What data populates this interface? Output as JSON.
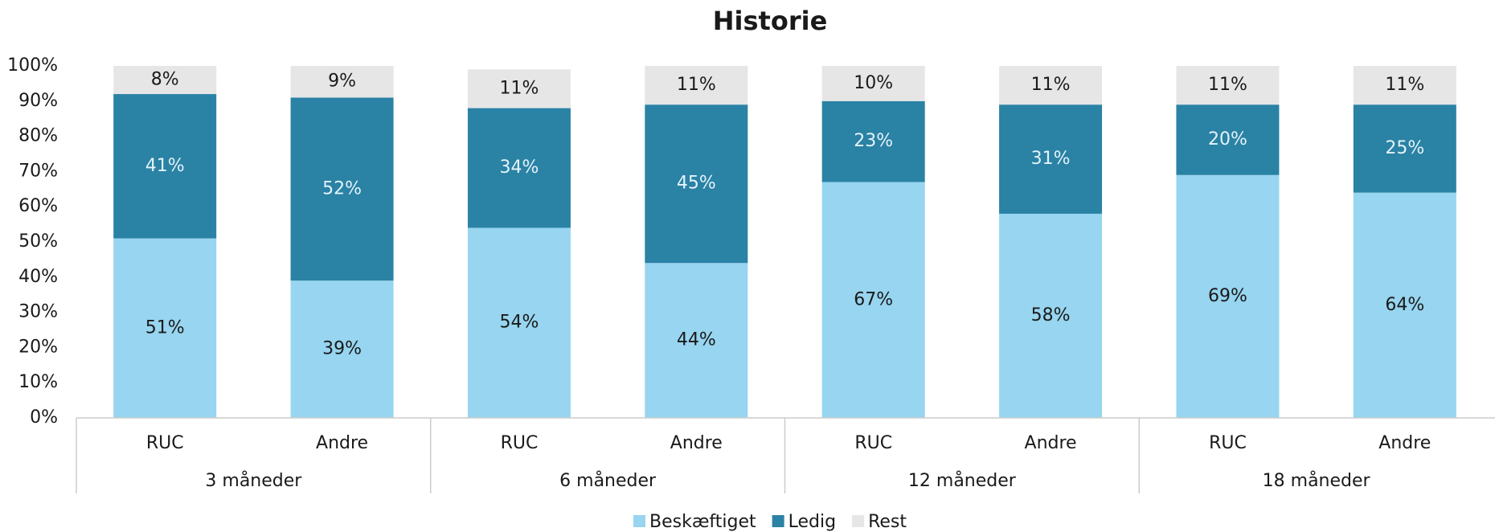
{
  "chart_data": {
    "type": "stacked_bar",
    "title": "Historie",
    "categories": [
      "RUC",
      "Andre",
      "RUC",
      "Andre",
      "RUC",
      "Andre",
      "RUC",
      "Andre"
    ],
    "groups": [
      "3 måneder",
      "6 måneder",
      "12 måneder",
      "18 måneder"
    ],
    "series": [
      {
        "name": "Beskæftiget",
        "color": "#97d5f0",
        "label_color": "#1a1a1a",
        "values": [
          51,
          39,
          54,
          44,
          67,
          58,
          69,
          64
        ],
        "value_labels": [
          "51%",
          "39%",
          "54%",
          "44%",
          "67%",
          "58%",
          "69%",
          "64%"
        ]
      },
      {
        "name": "Ledig",
        "color": "#2a82a5",
        "label_color": "#e4f3f9",
        "values": [
          41,
          52,
          34,
          45,
          23,
          31,
          20,
          25
        ],
        "value_labels": [
          "41%",
          "52%",
          "34%",
          "45%",
          "23%",
          "31%",
          "20%",
          "25%"
        ]
      },
      {
        "name": "Rest",
        "color": "#e6e6e6",
        "label_color": "#1a1a1a",
        "values": [
          8,
          9,
          11,
          11,
          10,
          11,
          11,
          11
        ],
        "value_labels": [
          "8%",
          "9%",
          "11%",
          "11%",
          "10%",
          "11%",
          "11%",
          "11%"
        ]
      }
    ],
    "ylim": [
      0,
      100
    ],
    "yticks": [
      {
        "value": 0,
        "label": "0%"
      },
      {
        "value": 10,
        "label": "10%"
      },
      {
        "value": 20,
        "label": "20%"
      },
      {
        "value": 30,
        "label": "30%"
      },
      {
        "value": 40,
        "label": "40%"
      },
      {
        "value": 50,
        "label": "50%"
      },
      {
        "value": 60,
        "label": "60%"
      },
      {
        "value": 70,
        "label": "70%"
      },
      {
        "value": 80,
        "label": "80%"
      },
      {
        "value": 90,
        "label": "90%"
      },
      {
        "value": 100,
        "label": "100%"
      }
    ],
    "grid": false,
    "legend": "bottom"
  }
}
